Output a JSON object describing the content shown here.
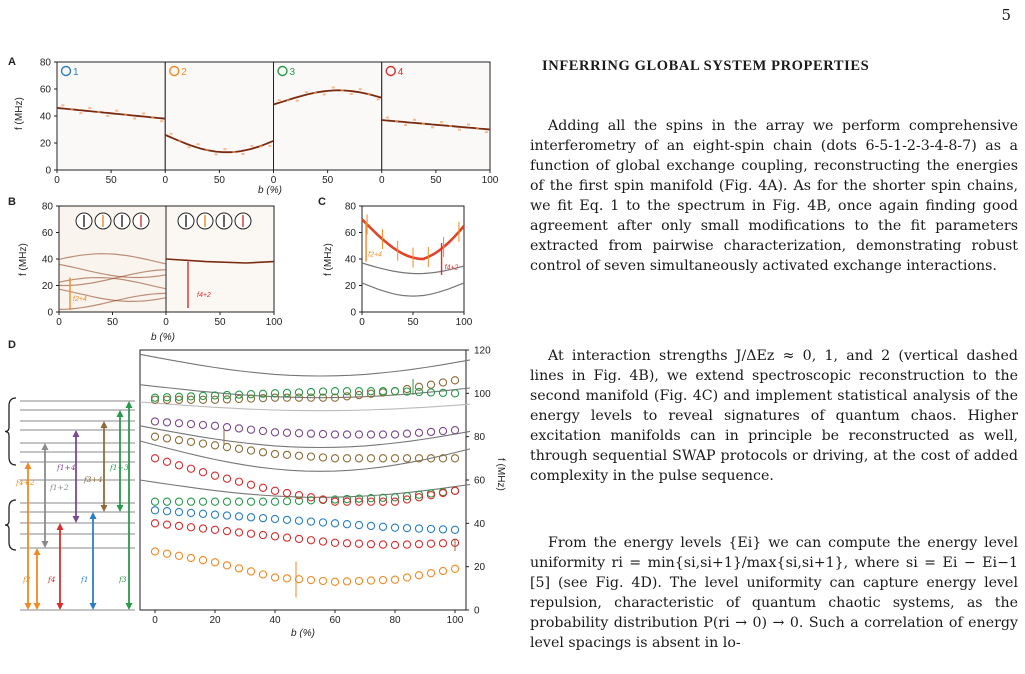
{
  "page_number": "5",
  "heading": "INFERRING GLOBAL SYSTEM PROPERTIES",
  "paragraphs": [
    "Adding all the spins in the array we perform comprehensive interferometry of an eight-spin chain (dots 6-5-1-2-3-4-8-7) as a function of global exchange coupling, reconstructing the energies of the first spin manifold (Fig. 4A). As for the shorter spin chains, we fit Eq. 1 to the spectrum in Fig. 4B, once again finding good agreement after only small modifications to the fit parameters extracted from pairwise characterization, demonstrating robust control of seven simultaneously activated exchange interactions.",
    "At interaction strengths J/ΔEz ≈ 0, 1, and 2 (vertical dashed lines in Fig. 4B), we extend spectroscopic reconstruction to the second manifold (Fig. 4C) and implement statistical analysis of the energy levels to reveal signatures of quantum chaos. Higher excitation manifolds can in principle be reconstructed as well, through sequential SWAP protocols or driving, at the cost of added complexity in the pulse sequence.",
    "From the energy levels {Ei} we can compute the energy level uniformity ri = min{si,si+1}/max{si,si+1}, where si = Ei − Ei−1 [5] (see Fig. 4D). The level uniformity can capture energy level repulsion, characteristic of quantum chaotic systems, as the probability distribution P(ri → 0) → 0. Such a correlation of energy level spacings is absent in lo-"
  ],
  "figure": {
    "panel_labels": [
      "A",
      "B",
      "C",
      "D"
    ],
    "panel_a": {
      "ylabel": "f (MHz)",
      "xlabel": "b (%)",
      "yticks": [
        "0",
        "20",
        "40",
        "60",
        "80"
      ],
      "xticks": [
        "0",
        "50",
        "0",
        "50",
        "0",
        "50",
        "0",
        "50",
        "100"
      ],
      "subpanels": [
        {
          "label": "1",
          "color": "#2a7fc0"
        },
        {
          "label": "2",
          "color": "#f08a24"
        },
        {
          "label": "3",
          "color": "#2a9a4a"
        },
        {
          "label": "4",
          "color": "#d62f2f"
        }
      ]
    },
    "panel_b": {
      "ylabel": "f (MHz)",
      "xlabel": "b (%)",
      "yticks": [
        "0",
        "20",
        "40",
        "60",
        "80"
      ],
      "xticks": [
        "0",
        "50",
        "0",
        "50",
        "100"
      ],
      "annotations": [
        "f2+4",
        "f4+2"
      ]
    },
    "panel_c": {
      "ylabel": "f (MHz)",
      "yticks": [
        "0",
        "20",
        "40",
        "60",
        "80"
      ],
      "xticks": [
        "0",
        "50",
        "100"
      ],
      "annotations": [
        "f2+4",
        "f4+2"
      ]
    },
    "panel_d": {
      "ylabel": "f (MHz)",
      "xlabel": "b (%)",
      "yticks": [
        "0",
        "20",
        "40",
        "60",
        "80",
        "100",
        "120"
      ],
      "xticks": [
        "0",
        "20",
        "40",
        "60",
        "80",
        "100"
      ],
      "level_labels": [
        "f4+2",
        "f2",
        "f4",
        "f1",
        "f3",
        "f1+2",
        "f1+4",
        "f3+4",
        "f1+3"
      ],
      "colors": {
        "orange": "#f08a24",
        "red": "#d62f2f",
        "blue": "#2a7fc0",
        "green": "#2a9a4a",
        "purple": "#7a4a8c",
        "brown": "#8c6d3a"
      }
    }
  },
  "chart_data": {
    "type": "scatter",
    "xlabel": "b (%)",
    "ylabel": "f (MHz)",
    "xlim": [
      0,
      100
    ],
    "ylim": [
      0,
      120
    ],
    "x": [
      0,
      20,
      40,
      60,
      80,
      100
    ],
    "series": [
      {
        "values": [
          27,
          22,
          15,
          13,
          14,
          19
        ]
      },
      {
        "values": [
          40,
          37,
          34,
          31,
          30,
          31
        ]
      },
      {
        "values": [
          46,
          44,
          42,
          40,
          38,
          37
        ]
      },
      {
        "values": [
          50,
          50,
          50,
          51,
          52,
          55
        ]
      },
      {
        "values": [
          70,
          62,
          55,
          50,
          50,
          55
        ]
      },
      {
        "values": [
          80,
          76,
          72,
          70,
          70,
          70
        ]
      },
      {
        "values": [
          87,
          85,
          82,
          81,
          81,
          83
        ]
      },
      {
        "values": [
          97,
          97,
          98,
          98,
          101,
          106
        ]
      },
      {
        "values": [
          98,
          99,
          100,
          101,
          101,
          100
        ]
      }
    ]
  }
}
